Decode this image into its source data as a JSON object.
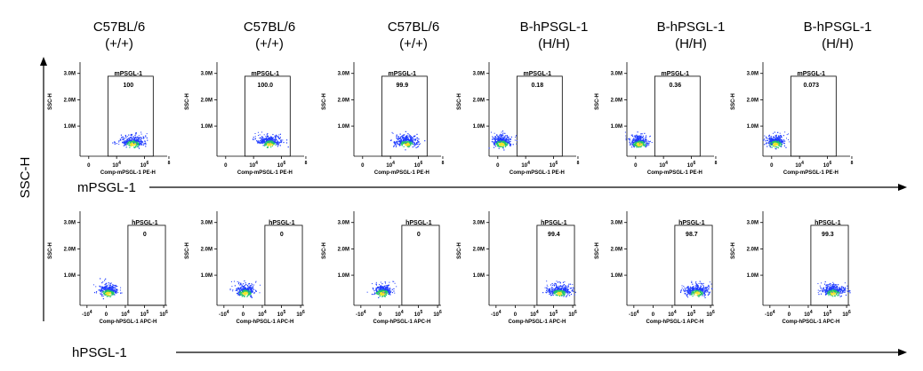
{
  "column_headers": [
    {
      "line1": "C57BL/6",
      "line2": "(+/+)"
    },
    {
      "line1": "C57BL/6",
      "line2": "(+/+)"
    },
    {
      "line1": "C57BL/6",
      "line2": "(+/+)"
    },
    {
      "line1": "B-hPSGL-1",
      "line2": "(H/H)"
    },
    {
      "line1": "B-hPSGL-1",
      "line2": "(H/H)"
    },
    {
      "line1": "B-hPSGL-1",
      "line2": "(H/H)"
    }
  ],
  "y_axis_title": "SSC-H",
  "row_labels": [
    "mPSGL-1",
    "hPSGL-1"
  ],
  "panel_ylabel": "SSC-H",
  "y_ticks": [
    "3.0M",
    "2.0M",
    "1.0M"
  ],
  "rows": [
    {
      "gate_name": "mPSGL-1",
      "xlabel": "Comp-mPSGL-1 PE-H",
      "x_ticks": [
        {
          "base": "0"
        },
        {
          "base": "10",
          "exp": "4"
        },
        {
          "base": "10",
          "exp": "6"
        },
        {
          "base": "",
          "exp": "8"
        }
      ],
      "values": [
        "100",
        "100.0",
        "99.9",
        "0.18",
        "0.36",
        "0.073"
      ]
    },
    {
      "gate_name": "hPSGL-1",
      "xlabel": "Comp-hPSGL-1 APC-H",
      "x_ticks": [
        {
          "base": "-10",
          "exp": "4"
        },
        {
          "base": "0"
        },
        {
          "base": "10",
          "exp": "4"
        },
        {
          "base": "10",
          "exp": "5"
        },
        {
          "base": "10",
          "exp": "6"
        }
      ],
      "values": [
        "0",
        "0",
        "0",
        "99.4",
        "98.7",
        "99.3"
      ]
    }
  ],
  "colors": {
    "axis": "#000000",
    "scatter_low": "#1f3cff",
    "scatter_mid": "#21c46b",
    "scatter_high": "#f2e32c"
  }
}
